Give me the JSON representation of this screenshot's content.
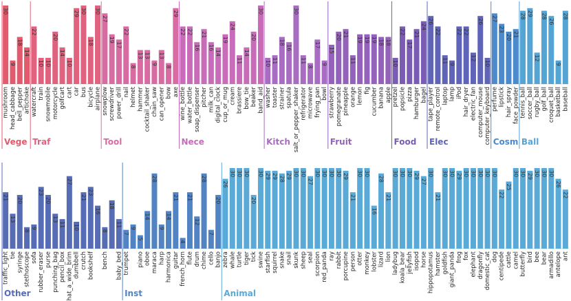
{
  "chart_data": [
    {
      "type": "grouped-bar",
      "ylim": [
        0,
        30
      ],
      "groups": [
        {
          "name": "Vege",
          "color": "#e25a6c",
          "categories": [
            "mushroom",
            "head_cabbage",
            "bell_pepper",
            "artichoke"
          ],
          "values": [
            30,
            9,
            18,
            14
          ]
        },
        {
          "name": "Traf",
          "color": "#e0627e",
          "categories": [
            "watercraft",
            "train",
            "snowmobile",
            "motorcycle",
            "golfcart",
            "cart",
            "car",
            "bus",
            "bicycle",
            "airplane"
          ],
          "values": [
            22,
            10,
            10,
            20,
            14,
            10,
            29,
            30,
            18,
            30
          ]
        },
        {
          "name": "Tool",
          "color": "#d86ba2",
          "categories": [
            "snowplow",
            "screwdriver",
            "power_drill",
            "nail",
            "helmet",
            "hammer",
            "cocktail_shaker",
            "chain_saw",
            "can_opener",
            "bow",
            "axe"
          ],
          "values": [
            27,
            19,
            17,
            22,
            8,
            13,
            13,
            9,
            13,
            8,
            29
          ]
        },
        {
          "name": "Nece",
          "color": "#c86cba",
          "categories": [
            "wine_bottle",
            "water_bottle",
            "soap_dispenser",
            "pitcher",
            "milk_can",
            "digital_clock",
            "cup_or_mug",
            "cream",
            "brassiere",
            "bow_tie",
            "beaker",
            "band_aid"
          ],
          "values": [
            22,
            22,
            16,
            21,
            16,
            14,
            19,
            24,
            11,
            14,
            20,
            30
          ]
        },
        {
          "name": "Kitch",
          "color": "#a86cc2",
          "categories": [
            "washer",
            "toaster",
            "strainer",
            "spatula",
            "salt_or_pepper_shaker",
            "refrigerator",
            "microwave",
            "frying_pan",
            "bowl"
          ],
          "values": [
            10,
            11,
            18,
            16,
            30,
            11,
            8,
            17,
            9
          ]
        },
        {
          "name": "Fruit",
          "color": "#9462ba",
          "categories": [
            "strawberry",
            "pomegranate",
            "pineapple",
            "orange",
            "lemon",
            "fig",
            "cucumber",
            "banana",
            "apple"
          ],
          "values": [
            15,
            20,
            21,
            11,
            19,
            19,
            19,
            18,
            18
          ]
        },
        {
          "name": "Food",
          "color": "#7a5cb4",
          "categories": [
            "pretzel",
            "popsicle",
            "pizza",
            "hamburger",
            "bagel"
          ],
          "values": [
            10,
            22,
            17,
            21,
            24
          ]
        },
        {
          "name": "Elec",
          "color": "#6064b8",
          "categories": [
            "tape_player",
            "remote_control",
            "laptop",
            "lamp",
            "iPod",
            "hair_dryer",
            "electric_fan",
            "computer_mouse",
            "computer_keyboard"
          ],
          "values": [
            26,
            22,
            11,
            9,
            22,
            22,
            12,
            26,
            10
          ]
        },
        {
          "name": "Cosm",
          "color": "#4c8acc",
          "categories": [
            "perfume",
            "lipstick",
            "hair_spray",
            "face_powder"
          ],
          "values": [
            27,
            23,
            20,
            21
          ]
        },
        {
          "name": "Ball",
          "color": "#54a4d4",
          "categories": [
            "tennis_ball",
            "soccer_ball",
            "rugby_ball",
            "golf_ball",
            "croquet_ball",
            "basketball",
            "baseball"
          ],
          "values": [
            28,
            29,
            12,
            28,
            26,
            9,
            28
          ]
        }
      ]
    },
    {
      "type": "grouped-bar",
      "ylim": [
        0,
        30
      ],
      "groups": [
        {
          "name": "Other",
          "color": "#566cb4",
          "categories": [
            "traffic_light",
            "tie",
            "syringe",
            "stethoscope",
            "sofa",
            "rubber_eraser",
            "purse",
            "punching_bag",
            "pencil_box",
            "hat_a_wide_brim",
            "dumbbell",
            "crutch",
            "bookshelf",
            null,
            "bench",
            null,
            "baby_bed"
          ],
          "values": [
            21,
            13,
            20,
            8,
            9,
            23,
            20,
            13,
            11,
            27,
            10,
            21,
            23,
            16,
            8,
            18,
            11
          ]
        },
        {
          "name": "Inst",
          "color": "#5284c4",
          "categories": [
            "trumpet",
            null,
            "piano",
            "oboe",
            "maraca",
            "harp",
            "harmonica",
            "guitar",
            "french_horn",
            "flute",
            "drum",
            "chime",
            "cello",
            "banjo"
          ],
          "values": [
            7,
            9,
            5,
            14,
            28,
            9,
            14,
            21,
            4,
            21,
            12,
            28,
            7,
            20
          ]
        },
        {
          "name": "Animal",
          "color": "#5aaad8",
          "categories": [
            "zebra",
            "whale",
            "turtle",
            "tiger",
            "tick",
            "swine",
            "starfish",
            "squirrel",
            "snake",
            "snail",
            "skunk",
            "sheep",
            "seal",
            "scorpion",
            "red_panda",
            "ray",
            "rabbit",
            "porcupine",
            "person",
            "otter",
            "monkey",
            "lobster",
            "lizard",
            "lion",
            "ladybug",
            "koala_bear",
            "jellyfish",
            "isopod",
            "horse",
            "hippopotamus",
            "hamster",
            "goldfish",
            "giant_panda",
            "frog",
            "fox",
            "elephant",
            "dragonfly",
            "domestic_cat",
            "dog",
            "centipede",
            "cattle",
            "camel",
            "butterfly",
            "bird",
            "bee",
            "bear",
            "armadillo",
            "antelope",
            "ant"
          ],
          "values": [
            26,
            30,
            30,
            30,
            20,
            30,
            29,
            29,
            28,
            29,
            30,
            30,
            27,
            30,
            30,
            30,
            30,
            29,
            21,
            30,
            30,
            16,
            28,
            21,
            30,
            30,
            30,
            29,
            27,
            30,
            21,
            30,
            30,
            29,
            30,
            30,
            30,
            30,
            30,
            22,
            25,
            30,
            30,
            29,
            30,
            30,
            30,
            26,
            22
          ]
        }
      ]
    }
  ]
}
